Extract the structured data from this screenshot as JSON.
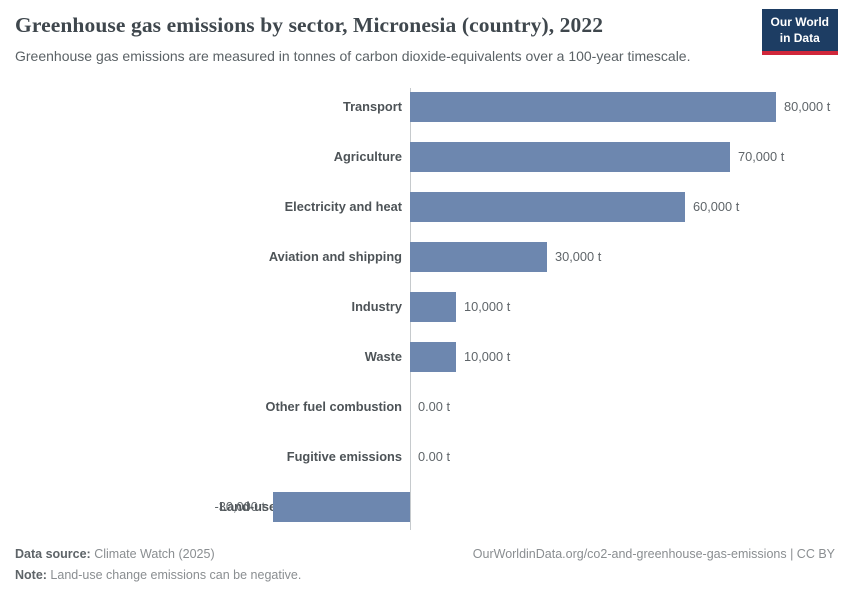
{
  "header": {
    "title": "Greenhouse gas emissions by sector, Micronesia (country), 2022",
    "subtitle": "Greenhouse gas emissions are measured in tonnes of carbon dioxide-equivalents over a 100-year timescale.",
    "logo_line1": "Our World",
    "logo_line2": "in Data",
    "logo_bg_color": "#1d3d63",
    "logo_accent_color": "#d0273a"
  },
  "chart_data": {
    "type": "bar",
    "orientation": "horizontal",
    "title": "Greenhouse gas emissions by sector, Micronesia (country), 2022",
    "xlabel": "",
    "ylabel": "",
    "unit": "tonnes of CO2-equivalents",
    "xlim": [
      -30000,
      80000
    ],
    "grid": false,
    "legend": "none",
    "bar_color": "#6d87af",
    "categories": [
      "Transport",
      "Agriculture",
      "Electricity and heat",
      "Aviation and shipping",
      "Industry",
      "Waste",
      "Other fuel combustion",
      "Fugitive emissions",
      "Land-use change and forestry"
    ],
    "values": [
      80000,
      70000,
      60000,
      30000,
      10000,
      10000,
      0,
      0,
      -30000
    ],
    "value_labels": [
      "80,000 t",
      "70,000 t",
      "60,000 t",
      "30,000 t",
      "10,000 t",
      "10,000 t",
      "0.00 t",
      "0.00 t",
      "-30,000 t"
    ]
  },
  "footer": {
    "data_source_label": "Data source:",
    "data_source": " Climate Watch (2025)",
    "note_label": "Note:",
    "note": " Land-use change emissions can be negative.",
    "origin": "OurWorldinData.org/co2-and-greenhouse-gas-emissions | CC BY"
  }
}
